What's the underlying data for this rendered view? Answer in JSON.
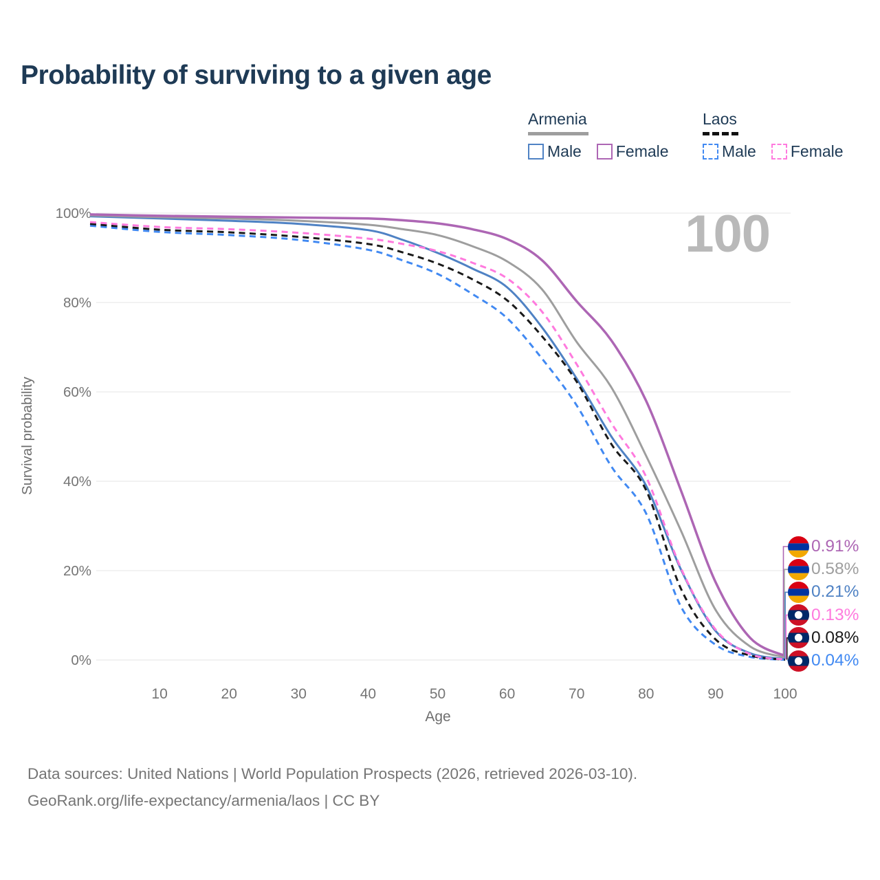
{
  "title": "Probability of surviving to a given age",
  "legend": {
    "groups": [
      {
        "id": "armenia",
        "label": "Armenia",
        "underline_style": "solid",
        "underline_color": "#9e9e9e",
        "items": [
          {
            "label": "Male",
            "color": "#4f82c4",
            "style": "solid"
          },
          {
            "label": "Female",
            "color": "#ad66b4",
            "style": "solid"
          }
        ]
      },
      {
        "id": "laos",
        "label": "Laos",
        "underline_style": "dashed",
        "underline_color": "#111111",
        "items": [
          {
            "label": "Male",
            "color": "#4189f2",
            "style": "dashed"
          },
          {
            "label": "Female",
            "color": "#ff7ade",
            "style": "dashed"
          }
        ]
      }
    ]
  },
  "chart_data": {
    "type": "line",
    "title": "Probability of surviving to a given age",
    "xlabel": "Age",
    "ylabel": "Survival probability",
    "xlim": [
      0,
      100
    ],
    "ylim": [
      0,
      100
    ],
    "x_ticks": [
      10,
      20,
      30,
      40,
      50,
      60,
      70,
      80,
      90,
      100
    ],
    "y_ticks_percent": [
      0,
      20,
      40,
      60,
      80,
      100
    ],
    "grid": "horizontal",
    "grid_color": "#e9e9e9",
    "tick_color": "#757575",
    "legend_position": "top-right",
    "age_counter_watermark": "100",
    "watermark_color": "#b9b9b9",
    "series": [
      {
        "id": "armenia-female",
        "name": "Armenia Female",
        "country": "Armenia",
        "sex": "Female",
        "style": "solid",
        "color": "#ad66b4",
        "width": 3.5,
        "end_label": "0.91%",
        "flag": "armenia",
        "points": [
          [
            0,
            99.7
          ],
          [
            10,
            99.4
          ],
          [
            20,
            99.2
          ],
          [
            30,
            99.0
          ],
          [
            40,
            98.8
          ],
          [
            45,
            98.4
          ],
          [
            50,
            97.7
          ],
          [
            55,
            96.4
          ],
          [
            60,
            94.2
          ],
          [
            65,
            89.5
          ],
          [
            70,
            80.3
          ],
          [
            75,
            71.5
          ],
          [
            80,
            58.0
          ],
          [
            85,
            38.0
          ],
          [
            90,
            17.4
          ],
          [
            95,
            4.9
          ],
          [
            100,
            0.91
          ]
        ]
      },
      {
        "id": "armenia-both",
        "name": "Armenia (both sexes)",
        "country": "Armenia",
        "sex": "Both",
        "style": "solid",
        "color": "#9e9e9e",
        "width": 3,
        "end_label": "0.58%",
        "flag": "armenia",
        "points": [
          [
            0,
            99.5
          ],
          [
            10,
            99.1
          ],
          [
            20,
            98.8
          ],
          [
            30,
            98.3
          ],
          [
            40,
            97.4
          ],
          [
            45,
            96.4
          ],
          [
            50,
            95.1
          ],
          [
            55,
            92.6
          ],
          [
            60,
            89.2
          ],
          [
            65,
            83.0
          ],
          [
            70,
            71.2
          ],
          [
            75,
            61.0
          ],
          [
            80,
            45.7
          ],
          [
            85,
            29.0
          ],
          [
            90,
            11.2
          ],
          [
            95,
            3.0
          ],
          [
            100,
            0.58
          ]
        ]
      },
      {
        "id": "armenia-male",
        "name": "Armenia Male",
        "country": "Armenia",
        "sex": "Male",
        "style": "solid",
        "color": "#4f82c4",
        "width": 3,
        "end_label": "0.21%",
        "flag": "armenia",
        "points": [
          [
            0,
            99.3
          ],
          [
            10,
            98.8
          ],
          [
            20,
            98.3
          ],
          [
            30,
            97.6
          ],
          [
            40,
            96.2
          ],
          [
            45,
            94.0
          ],
          [
            50,
            91.1
          ],
          [
            55,
            87.6
          ],
          [
            60,
            83.4
          ],
          [
            65,
            74.5
          ],
          [
            70,
            63.0
          ],
          [
            75,
            50.0
          ],
          [
            80,
            39.0
          ],
          [
            85,
            20.3
          ],
          [
            90,
            6.5
          ],
          [
            95,
            1.5
          ],
          [
            100,
            0.21
          ]
        ]
      },
      {
        "id": "laos-female",
        "name": "Laos Female",
        "country": "Laos",
        "sex": "Female",
        "style": "dashed",
        "color": "#ff7ade",
        "width": 3,
        "end_label": "0.13%",
        "flag": "laos",
        "points": [
          [
            0,
            98.0
          ],
          [
            10,
            96.9
          ],
          [
            20,
            96.4
          ],
          [
            30,
            95.6
          ],
          [
            40,
            94.3
          ],
          [
            45,
            93.1
          ],
          [
            50,
            91.5
          ],
          [
            55,
            88.9
          ],
          [
            60,
            85.4
          ],
          [
            65,
            78.0
          ],
          [
            70,
            66.2
          ],
          [
            75,
            53.0
          ],
          [
            80,
            41.0
          ],
          [
            85,
            20.6
          ],
          [
            90,
            6.8
          ],
          [
            95,
            1.3
          ],
          [
            100,
            0.13
          ]
        ]
      },
      {
        "id": "laos-both",
        "name": "Laos (both sexes)",
        "country": "Laos",
        "sex": "Both",
        "style": "dashed",
        "color": "#1a1a1a",
        "width": 3,
        "end_label": "0.08%",
        "flag": "laos",
        "points": [
          [
            0,
            97.6
          ],
          [
            10,
            96.3
          ],
          [
            20,
            95.7
          ],
          [
            30,
            94.7
          ],
          [
            40,
            93.1
          ],
          [
            45,
            91.2
          ],
          [
            50,
            88.7
          ],
          [
            55,
            85.2
          ],
          [
            60,
            80.5
          ],
          [
            65,
            72.5
          ],
          [
            70,
            62.3
          ],
          [
            75,
            48.3
          ],
          [
            80,
            38.0
          ],
          [
            85,
            16.0
          ],
          [
            90,
            4.6
          ],
          [
            95,
            1.0
          ],
          [
            100,
            0.08
          ]
        ]
      },
      {
        "id": "laos-male",
        "name": "Laos Male",
        "country": "Laos",
        "sex": "Male",
        "style": "dashed",
        "color": "#4189f2",
        "width": 3,
        "end_label": "0.04%",
        "flag": "laos",
        "points": [
          [
            0,
            97.2
          ],
          [
            10,
            95.8
          ],
          [
            20,
            95.1
          ],
          [
            30,
            94.0
          ],
          [
            40,
            91.8
          ],
          [
            45,
            89.4
          ],
          [
            50,
            86.4
          ],
          [
            55,
            81.9
          ],
          [
            60,
            76.5
          ],
          [
            65,
            67.5
          ],
          [
            70,
            57.0
          ],
          [
            75,
            43.3
          ],
          [
            80,
            32.8
          ],
          [
            85,
            12.0
          ],
          [
            90,
            3.4
          ],
          [
            95,
            0.7
          ],
          [
            100,
            0.04
          ]
        ]
      }
    ],
    "flags": {
      "armenia": {
        "stripes": [
          "#d90012",
          "#0033a0",
          "#f2a800"
        ]
      },
      "laos": {
        "red": "#ce1126",
        "blue": "#002868",
        "circle": "#ffffff"
      }
    }
  },
  "footer": {
    "line1": "Data sources: United Nations | World Population Prospects (2026, retrieved 2026-03-10).",
    "line2": "GeoRank.org/life-expectancy/armenia/laos | CC BY"
  }
}
